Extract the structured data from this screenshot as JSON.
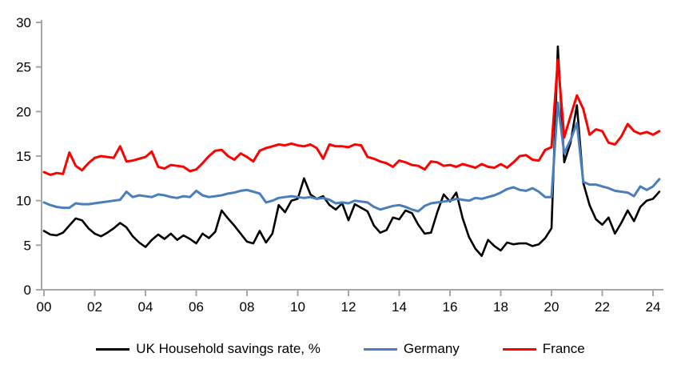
{
  "chart_data": {
    "type": "line",
    "title": "",
    "grid": "off",
    "legend_position": "bottom",
    "x_axis": {
      "tick_labels": [
        "00",
        "02",
        "04",
        "06",
        "08",
        "10",
        "12",
        "14",
        "16",
        "18",
        "20",
        "22",
        "24"
      ],
      "start_year": 2000,
      "years_per_tick": 2,
      "step_years_per_point": 0.25
    },
    "y_axis": {
      "min": 0,
      "max": 30,
      "tick_step": 5,
      "tick_labels": [
        "0",
        "5",
        "10",
        "15",
        "20",
        "25",
        "30"
      ]
    },
    "series": [
      {
        "name": "UK Household savings rate, %",
        "color": "#000000",
        "values": [
          6.6,
          6.2,
          6.1,
          6.4,
          7.2,
          8.0,
          7.8,
          6.9,
          6.3,
          6.0,
          6.4,
          6.9,
          7.5,
          7.0,
          6.0,
          5.3,
          4.8,
          5.6,
          6.2,
          5.7,
          6.3,
          5.6,
          6.1,
          5.7,
          5.2,
          6.3,
          5.8,
          6.5,
          8.9,
          8.0,
          7.2,
          6.3,
          5.4,
          5.2,
          6.6,
          5.3,
          6.3,
          9.5,
          8.7,
          10.0,
          10.2,
          12.5,
          10.7,
          10.2,
          10.5,
          9.5,
          9.0,
          9.7,
          7.8,
          9.6,
          9.2,
          8.8,
          7.2,
          6.4,
          6.7,
          8.1,
          7.9,
          8.9,
          8.6,
          7.3,
          6.3,
          6.4,
          8.7,
          10.7,
          9.9,
          10.9,
          8.0,
          5.9,
          4.6,
          3.8,
          5.6,
          4.9,
          4.4,
          5.3,
          5.1,
          5.2,
          5.2,
          4.9,
          5.1,
          5.8,
          6.9,
          27.3,
          14.3,
          16.5,
          20.7,
          12.0,
          9.5,
          7.9,
          7.3,
          8.1,
          6.3,
          7.5,
          8.9,
          7.7,
          9.3,
          10.0,
          10.2,
          11.0
        ]
      },
      {
        "name": "Germany",
        "color": "#4a7ebb",
        "values": [
          9.8,
          9.5,
          9.3,
          9.2,
          9.2,
          9.7,
          9.6,
          9.6,
          9.7,
          9.8,
          9.9,
          10.0,
          10.1,
          11.0,
          10.4,
          10.6,
          10.5,
          10.4,
          10.7,
          10.6,
          10.4,
          10.3,
          10.5,
          10.4,
          11.1,
          10.6,
          10.4,
          10.5,
          10.6,
          10.8,
          10.9,
          11.1,
          11.2,
          11.0,
          10.8,
          9.8,
          10.0,
          10.3,
          10.4,
          10.5,
          10.4,
          10.3,
          10.4,
          10.2,
          10.3,
          10.1,
          9.7,
          9.8,
          9.7,
          10.0,
          9.9,
          9.8,
          9.3,
          9.0,
          9.2,
          9.4,
          9.5,
          9.3,
          9.0,
          8.8,
          9.4,
          9.7,
          9.8,
          9.9,
          10.0,
          10.2,
          10.1,
          10.0,
          10.3,
          10.2,
          10.4,
          10.6,
          10.9,
          11.3,
          11.5,
          11.2,
          11.1,
          11.4,
          11.0,
          10.4,
          10.4,
          21.0,
          15.3,
          16.8,
          18.7,
          12.1,
          11.8,
          11.8,
          11.6,
          11.4,
          11.1,
          11.0,
          10.9,
          10.5,
          11.6,
          11.2,
          11.6,
          12.4
        ]
      },
      {
        "name": "France",
        "color": "#fe0000",
        "values": [
          13.2,
          12.9,
          13.1,
          13.0,
          15.4,
          13.9,
          13.4,
          14.2,
          14.8,
          15.0,
          14.9,
          14.8,
          16.1,
          14.4,
          14.5,
          14.7,
          14.9,
          15.5,
          13.8,
          13.6,
          14.0,
          13.9,
          13.8,
          13.3,
          13.5,
          14.2,
          15.0,
          15.6,
          15.7,
          15.0,
          14.6,
          15.3,
          14.9,
          14.4,
          15.6,
          15.9,
          16.1,
          16.3,
          16.2,
          16.4,
          16.2,
          16.1,
          16.3,
          15.9,
          14.7,
          16.3,
          16.1,
          16.1,
          16.0,
          16.3,
          16.2,
          14.9,
          14.7,
          14.4,
          14.2,
          13.8,
          14.5,
          14.3,
          14.0,
          13.9,
          13.5,
          14.4,
          14.3,
          13.9,
          14.0,
          13.8,
          14.1,
          13.9,
          13.7,
          14.1,
          13.8,
          13.7,
          14.1,
          13.7,
          14.3,
          15.0,
          15.1,
          14.6,
          14.5,
          15.7,
          16.0,
          25.8,
          17.1,
          19.5,
          21.8,
          20.3,
          17.4,
          18.0,
          17.8,
          16.5,
          16.3,
          17.2,
          18.6,
          17.8,
          17.5,
          17.7,
          17.4,
          17.8
        ]
      }
    ]
  },
  "colors": {
    "axis": "#a6a6a6",
    "text": "#000000"
  }
}
